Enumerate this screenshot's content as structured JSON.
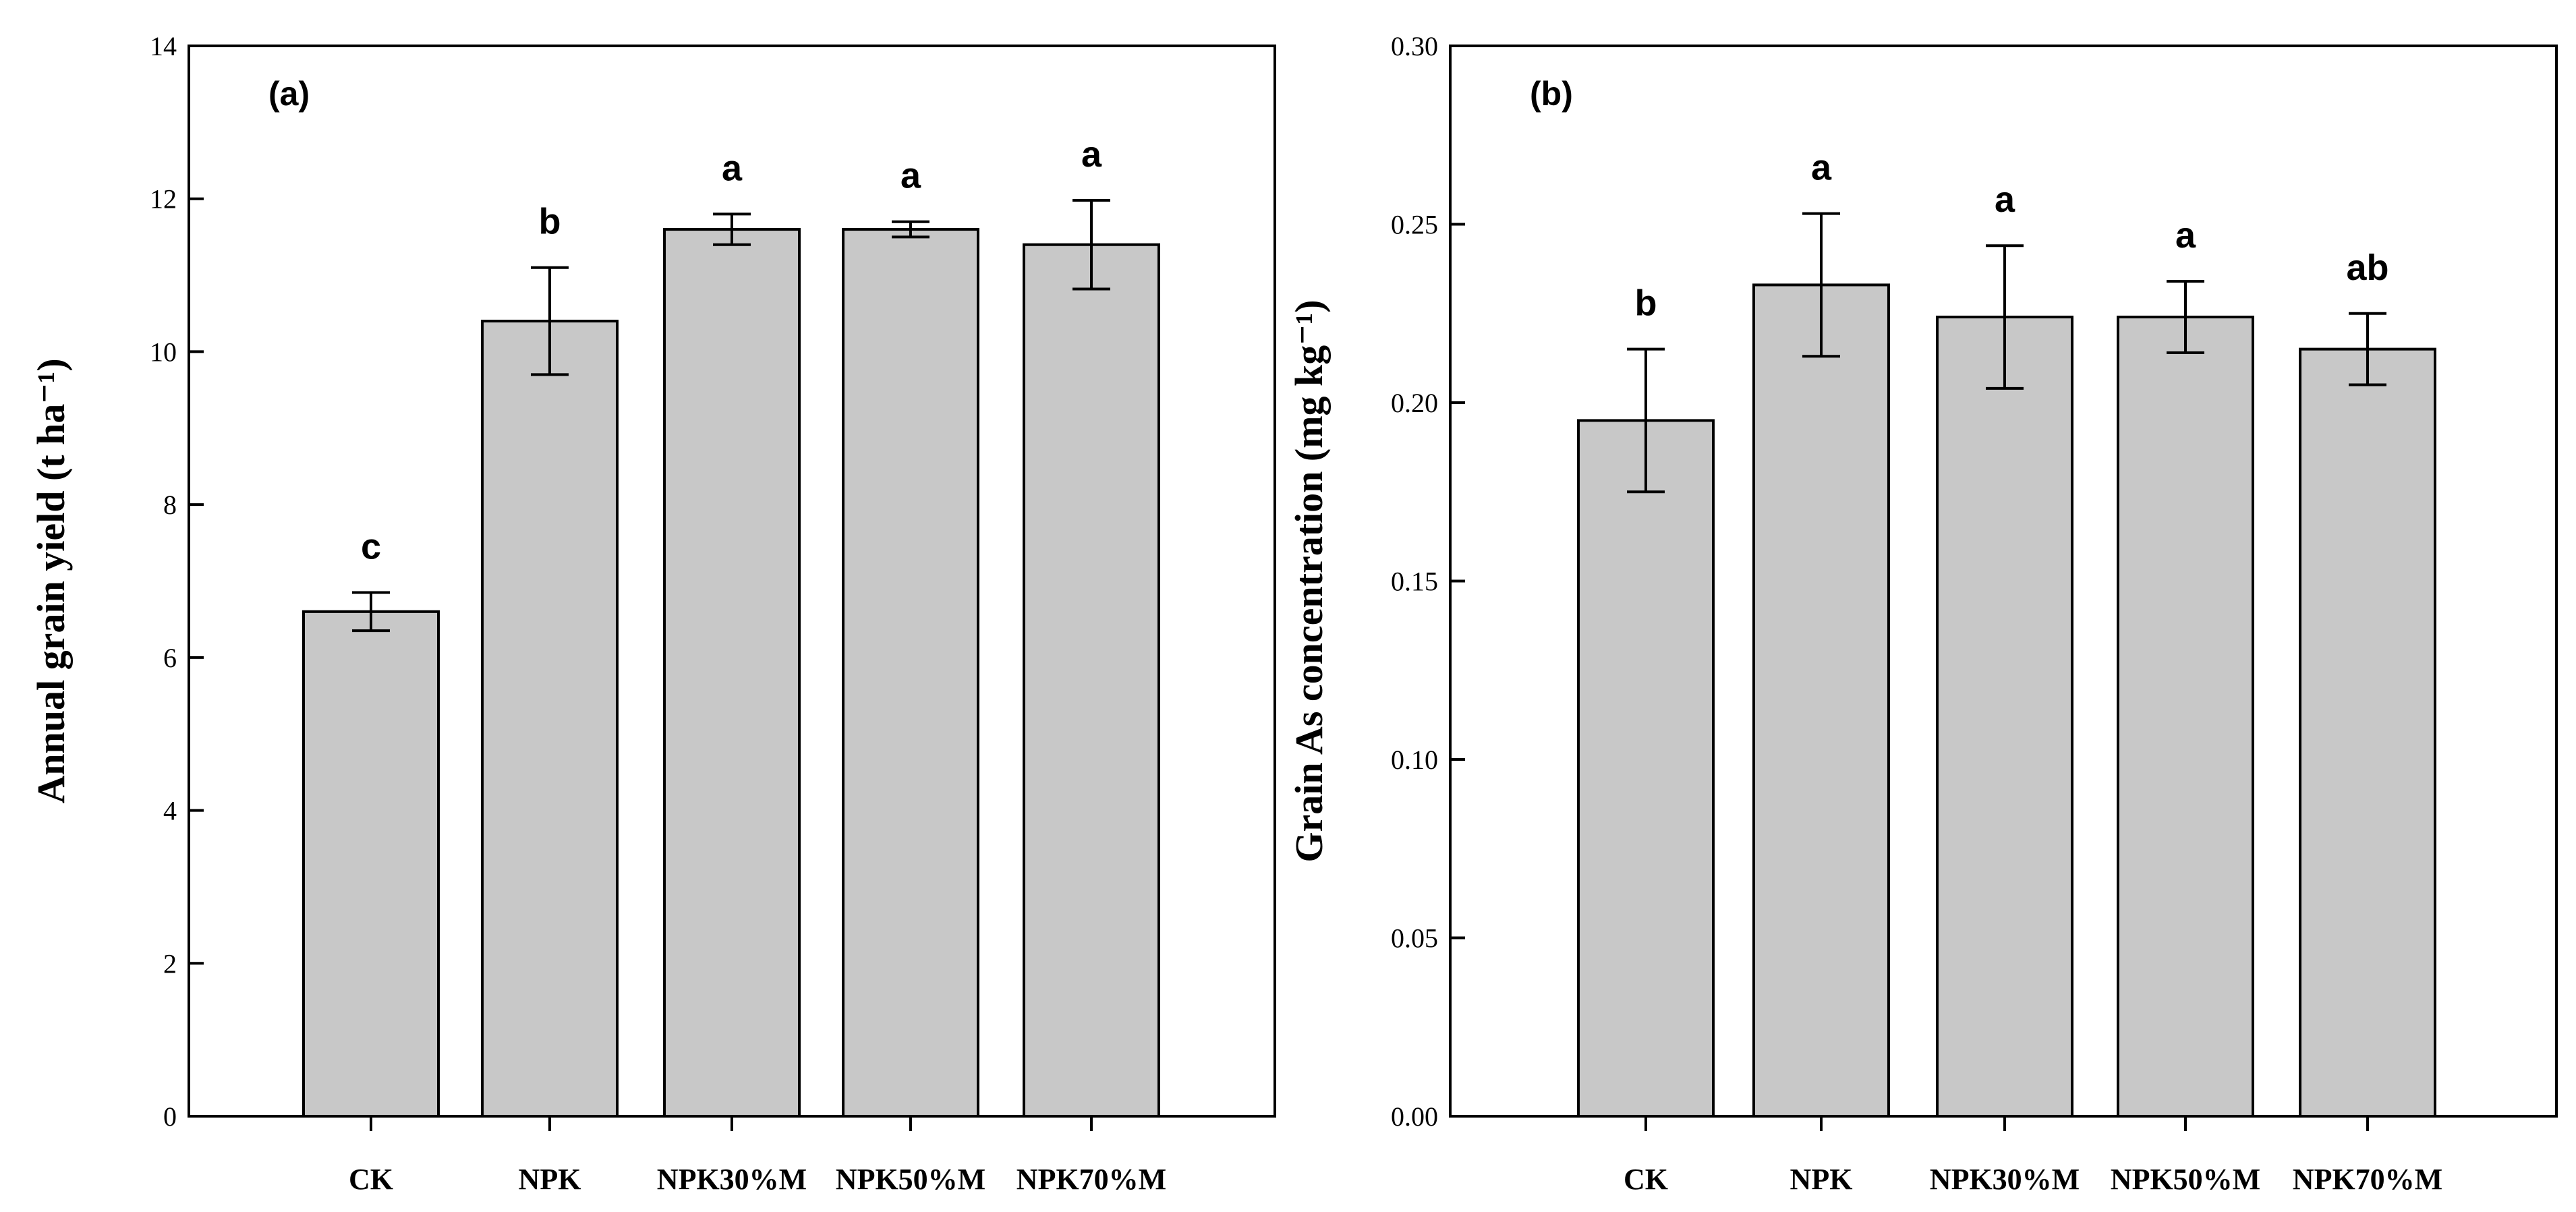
{
  "chart_data": [
    {
      "type": "bar",
      "panel_label": "(a)",
      "categories": [
        "CK",
        "NPK",
        "NPK30%M",
        "NPK50%M",
        "NPK70%M"
      ],
      "values": [
        6.6,
        10.4,
        11.6,
        11.6,
        11.4
      ],
      "errors": [
        0.25,
        0.7,
        0.2,
        0.1,
        0.58
      ],
      "significance": [
        "c",
        "b",
        "a",
        "a",
        "a"
      ],
      "ylabel": "Annual grain yield (t ha⁻¹)",
      "xlabel": "",
      "ylim": [
        0,
        14
      ],
      "yticks": [
        0,
        2,
        4,
        6,
        8,
        10,
        12,
        14
      ],
      "ytick_labels": [
        "0",
        "2",
        "4",
        "6",
        "8",
        "10",
        "12",
        "14"
      ],
      "bar_color": "#c8c8c8",
      "grid": false
    },
    {
      "type": "bar",
      "panel_label": "(b)",
      "categories": [
        "CK",
        "NPK",
        "NPK30%M",
        "NPK50%M",
        "NPK70%M"
      ],
      "values": [
        0.195,
        0.233,
        0.224,
        0.224,
        0.215
      ],
      "errors": [
        0.02,
        0.02,
        0.02,
        0.01,
        0.01
      ],
      "significance": [
        "b",
        "a",
        "a",
        "a",
        "ab"
      ],
      "ylabel": "Grain As concentration (mg kg⁻¹)",
      "xlabel": "",
      "ylim": [
        0,
        0.3
      ],
      "yticks": [
        0,
        0.05,
        0.1,
        0.15,
        0.2,
        0.25,
        0.3
      ],
      "ytick_labels": [
        "0.00",
        "0.05",
        "0.10",
        "0.15",
        "0.20",
        "0.25",
        "0.30"
      ],
      "bar_color": "#c8c8c8",
      "grid": false
    }
  ]
}
